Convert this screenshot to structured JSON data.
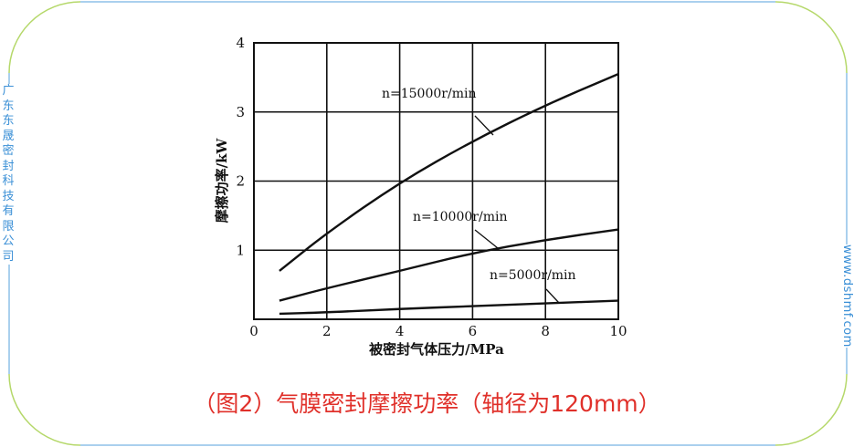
{
  "side_text_left": "广东东晟密封科技有限公司",
  "side_text_right": "www.dshmf.com",
  "caption": "（图2）气膜密封摩擦功率（轴径为120mm）",
  "colors": {
    "frame_line": "#8dc0e8",
    "frame_corner": "#b5d86a",
    "side_text": "#3a8fd6",
    "caption": "#e0302a",
    "plot": "#111111"
  },
  "chart_data": {
    "type": "line",
    "xlabel": "被密封气体压力/MPa",
    "ylabel": "摩擦功率/kW",
    "xlim": [
      0,
      10
    ],
    "ylim": [
      0,
      4
    ],
    "xticks": [
      "0",
      "2",
      "4",
      "6",
      "8",
      "10"
    ],
    "yticks": [
      "1",
      "2",
      "3",
      "4"
    ],
    "grid": true,
    "series": [
      {
        "name": "n=15000r/min",
        "x": [
          0.7,
          2,
          4,
          6,
          8,
          10
        ],
        "y": [
          0.7,
          1.25,
          1.98,
          2.58,
          3.1,
          3.55
        ]
      },
      {
        "name": "n=10000r/min",
        "x": [
          0.7,
          2,
          4,
          6,
          8,
          10
        ],
        "y": [
          0.27,
          0.45,
          0.7,
          0.96,
          1.15,
          1.3
        ]
      },
      {
        "name": "n=5000r/min",
        "x": [
          0.7,
          2,
          4,
          6,
          8,
          10
        ],
        "y": [
          0.08,
          0.1,
          0.15,
          0.19,
          0.23,
          0.27
        ]
      }
    ]
  }
}
